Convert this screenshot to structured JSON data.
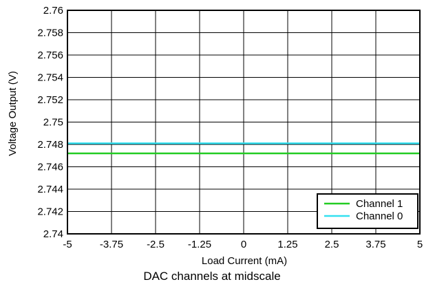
{
  "chart_data": {
    "type": "line",
    "title": "",
    "xlabel": "Load Current (mA)",
    "ylabel": "Voltage Output (V)",
    "xlim": [
      -5,
      5
    ],
    "ylim": [
      2.74,
      2.76
    ],
    "xticks": [
      "-5",
      "-3.75",
      "-2.5",
      "-1.25",
      "0",
      "1.25",
      "2.5",
      "3.75",
      "5"
    ],
    "xtick_values": [
      -5,
      -3.75,
      -2.5,
      -1.25,
      0,
      1.25,
      2.5,
      3.75,
      5
    ],
    "yticks": [
      "2.74",
      "2.742",
      "2.744",
      "2.746",
      "2.748",
      "2.75",
      "2.752",
      "2.754",
      "2.756",
      "2.758",
      "2.76"
    ],
    "ytick_values": [
      2.74,
      2.742,
      2.744,
      2.746,
      2.748,
      2.75,
      2.752,
      2.754,
      2.756,
      2.758,
      2.76
    ],
    "grid": true,
    "legend_position": "bottom-right",
    "series": [
      {
        "name": "Channel 1",
        "color": "#22cc22",
        "x": [
          -5,
          5
        ],
        "y": [
          2.7472,
          2.7472
        ]
      },
      {
        "name": "Channel 0",
        "color": "#33e0f0",
        "x": [
          -5,
          5
        ],
        "y": [
          2.7481,
          2.7481
        ]
      }
    ]
  },
  "caption": "DAC channels at midscale"
}
